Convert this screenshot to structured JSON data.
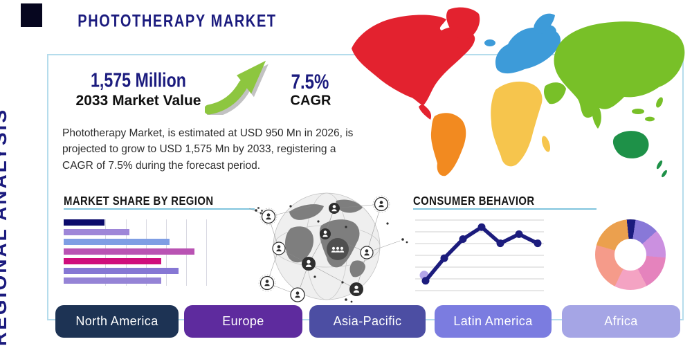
{
  "title": "PHOTOTHERAPY MARKET",
  "side_label": "REGIONAL ANALYSIS",
  "stats": {
    "market_value": "1,575 Million",
    "market_value_label": "2033 Market Value",
    "cagr_value": "7.5%",
    "cagr_label": "CAGR",
    "arrow_icon_color": "#8dc63f"
  },
  "description": "Phototherapy Market, is estimated at USD 950 Mn in 2026, is projected to grow to USD 1,575 Mn by 2033, registering a CAGR of 7.5% during the forecast period.",
  "colors": {
    "navy_accent": "#1b1b7e",
    "panel_border": "#b5dcec",
    "heading_underline": "#7fc4dd"
  },
  "map": {
    "continents": [
      {
        "name": "north-america",
        "color": "#e3222f"
      },
      {
        "name": "greenland",
        "color": "#e3222f"
      },
      {
        "name": "south-america",
        "color": "#f28a20"
      },
      {
        "name": "europe",
        "color": "#3d9bd9"
      },
      {
        "name": "africa",
        "color": "#f6c54d"
      },
      {
        "name": "asia",
        "color": "#78c028"
      },
      {
        "name": "middle-east",
        "color": "#78c028"
      },
      {
        "name": "australia",
        "color": "#1e9148"
      }
    ]
  },
  "chart_data": [
    {
      "type": "bar",
      "title": "MARKET SHARE BY REGION",
      "orientation": "horizontal",
      "categories": [
        "",
        "",
        "",
        "",
        "",
        "",
        ""
      ],
      "values": [
        28,
        45,
        73,
        90,
        67,
        79,
        67
      ],
      "value_units": "relative share (% of axis max)",
      "colors": [
        "#0b0b6b",
        "#9e86d8",
        "#7f9ee4",
        "#b953b3",
        "#cf0d7c",
        "#8677d4",
        "#9583d6"
      ],
      "grid": "vertical-lines",
      "xlim": [
        0,
        100
      ]
    },
    {
      "type": "line",
      "title": "CONSUMER BEHAVIOR",
      "x": [
        1,
        2,
        3,
        4,
        5,
        6,
        7
      ],
      "values": [
        14,
        46,
        73,
        90,
        67,
        80,
        67
      ],
      "ylim": [
        0,
        100
      ],
      "line_color": "#1c1c7d",
      "marker_color": "#1c1c7d",
      "start_marker_color": "#b3a5e8",
      "grid": "horizontal-lines"
    },
    {
      "type": "pie",
      "title": "",
      "style": "donut",
      "slices": [
        {
          "color": "#1b1b7e",
          "pct": 4
        },
        {
          "color": "#8878d8",
          "pct": 11
        },
        {
          "color": "#cb90e0",
          "pct": 13
        },
        {
          "color": "#e583bd",
          "pct": 16
        },
        {
          "color": "#f4a3c3",
          "pct": 15
        },
        {
          "color": "#f59b8a",
          "pct": 22
        },
        {
          "color": "#eba04e",
          "pct": 19
        }
      ]
    }
  ],
  "regions": [
    {
      "label": "North America",
      "color": "#1d3354"
    },
    {
      "label": "Europe",
      "color": "#5e2b9e"
    },
    {
      "label": "Asia-Pacific",
      "color": "#4c4ea3"
    },
    {
      "label": "Latin America",
      "color": "#7b7ce0"
    },
    {
      "label": "Africa",
      "color": "#a5a5e5"
    }
  ]
}
